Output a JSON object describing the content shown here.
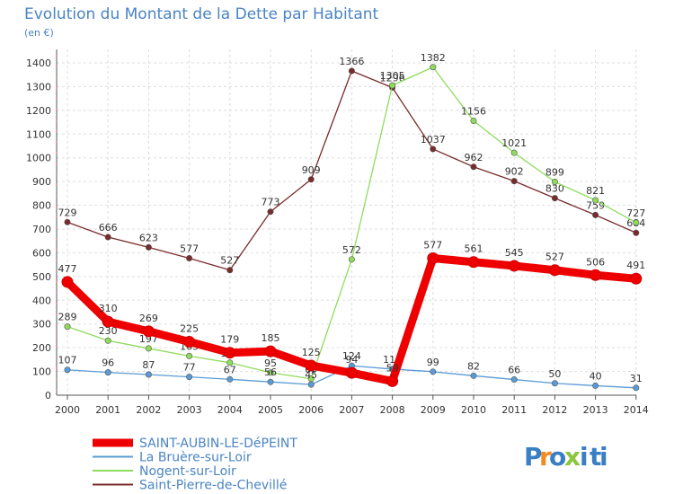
{
  "title": "Evolution du Montant de la Dette par Habitant",
  "subtitle": "(en €)",
  "brand": {
    "letters": [
      "P",
      "r",
      "o",
      "x",
      "i",
      "t",
      "i"
    ],
    "colors": [
      "#3a7fc4",
      "#f28c1e",
      "#3a7fc4",
      "#8dc63f",
      "#3a7fc4",
      "#3a7fc4",
      "#3a7fc4"
    ]
  },
  "chart_data": {
    "type": "line",
    "x": [
      "2000",
      "2001",
      "2002",
      "2003",
      "2004",
      "2005",
      "2006",
      "2007",
      "2008",
      "2009",
      "2010",
      "2011",
      "2012",
      "2013",
      "2014"
    ],
    "ylim": [
      0,
      1400
    ],
    "yticks": [
      "0",
      "100",
      "200",
      "300",
      "400",
      "500",
      "600",
      "700",
      "800",
      "900",
      "1000",
      "1100",
      "1200",
      "1300",
      "1400"
    ],
    "grid": true,
    "legend_position": "bottom-left",
    "series": [
      {
        "name": "Saint-Pierre-de-Chevillé",
        "color": "#7a2b2b",
        "values": [
          729,
          666,
          623,
          577,
          527,
          773,
          909,
          1366,
          1296,
          1037,
          962,
          902,
          830,
          759,
          684
        ],
        "labels": [
          "729",
          "666",
          "623",
          "577",
          "527",
          "773",
          "909",
          "1366",
          "1296",
          "1037",
          "962",
          "902",
          "830",
          "759",
          "684"
        ]
      },
      {
        "name": "Nogent-sur-Loir",
        "color": "#8fdc5c",
        "values": [
          289,
          230,
          197,
          165,
          137,
          95,
          69,
          572,
          1305,
          1382,
          1156,
          1021,
          899,
          821,
          727
        ],
        "labels": [
          "289",
          "230",
          "197",
          "165",
          "137",
          "95",
          "69",
          "572",
          "1305",
          "1382",
          "1156",
          "1021",
          "899",
          "821",
          "727"
        ]
      },
      {
        "name": "La Bruère-sur-Loir",
        "color": "#5b9bd5",
        "values": [
          107,
          96,
          87,
          77,
          67,
          56,
          45,
          124,
          110,
          99,
          82,
          66,
          50,
          40,
          31
        ],
        "labels": [
          "107",
          "96",
          "87",
          "77",
          "67",
          "56",
          "45",
          "124",
          "110",
          "99",
          "82",
          "66",
          "50",
          "40",
          "31"
        ]
      },
      {
        "name": "SAINT-AUBIN-LE-DéPEINT",
        "color": "#ee0000",
        "values": [
          477,
          310,
          269,
          225,
          179,
          185,
          125,
          94,
          59,
          577,
          561,
          545,
          527,
          506,
          491
        ],
        "labels": [
          "477",
          "310",
          "269",
          "225",
          "179",
          "185",
          "125",
          "94",
          "59",
          "577",
          "561",
          "545",
          "527",
          "506",
          "491"
        ]
      }
    ],
    "legend": [
      {
        "name": "SAINT-AUBIN-LE-DéPEINT",
        "color": "#ee0000",
        "width": 9
      },
      {
        "name": "La Bruère-sur-Loir",
        "color": "#5b9bd5",
        "width": 2
      },
      {
        "name": "Nogent-sur-Loir",
        "color": "#8fdc5c",
        "width": 2
      },
      {
        "name": "Saint-Pierre-de-Chevillé",
        "color": "#7a2b2b",
        "width": 2
      }
    ]
  }
}
